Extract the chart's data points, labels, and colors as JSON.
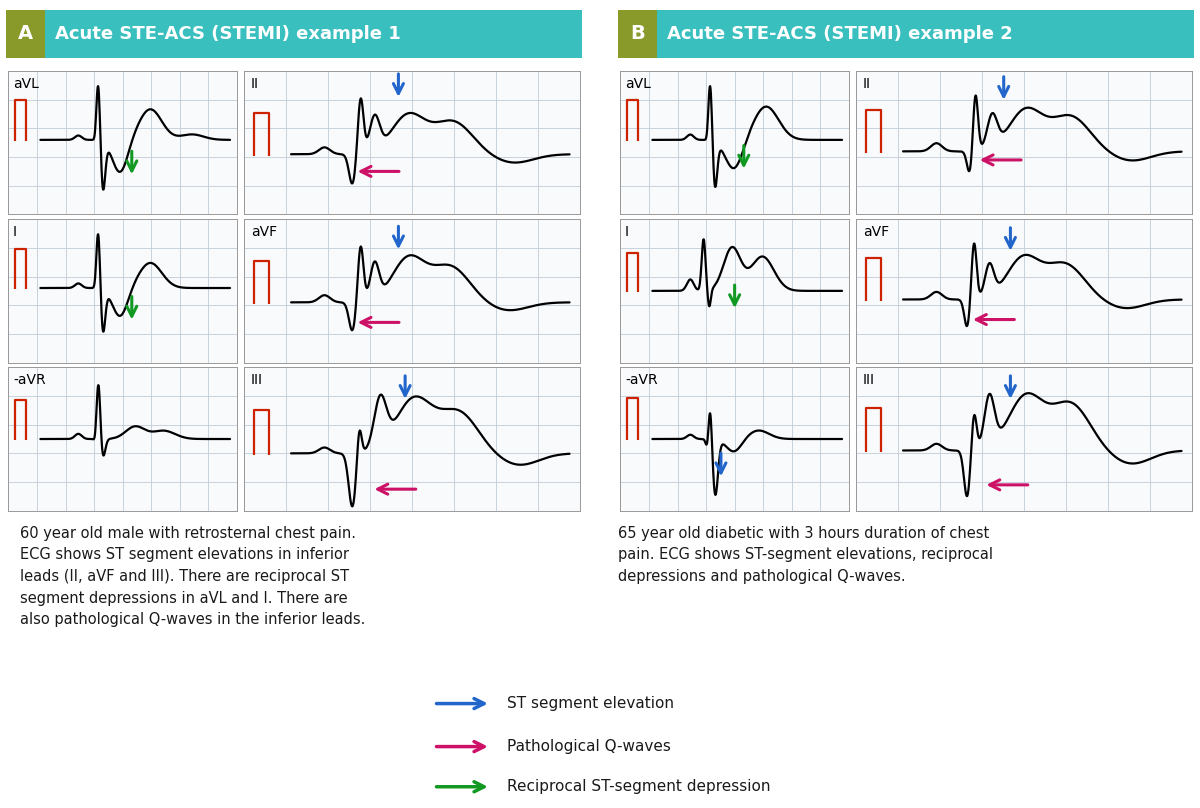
{
  "title_A": "Acute STE-ACS (STEMI) example 1",
  "title_B": "Acute STE-ACS (STEMI) example 2",
  "header_bg": "#3abfbf",
  "header_A_label_bg": "#8a9a2a",
  "header_B_label_bg": "#8a9a2a",
  "grid_color": "#c0ccd8",
  "ecg_bg": "#f8fafc",
  "caption_A": "60 year old male with retrosternal chest pain.\nECG shows ST segment elevations in inferior\nleads (II, aVF and III). There are reciprocal ST\nsegment depressions in aVL and I. There are\nalso pathological Q-waves in the inferior leads.",
  "caption_B": "65 year old diabetic with 3 hours duration of chest\npain. ECG shows ST-segment elevations, reciprocal\ndepressions and pathological Q-waves.",
  "legend_blue": "ST segment elevation",
  "legend_pink": "Pathological Q-waves",
  "legend_green": "Reciprocal ST-segment depression",
  "arrow_blue": "#2266cc",
  "arrow_pink": "#cc1166",
  "arrow_green": "#119922",
  "text_color": "#1a1a1a"
}
